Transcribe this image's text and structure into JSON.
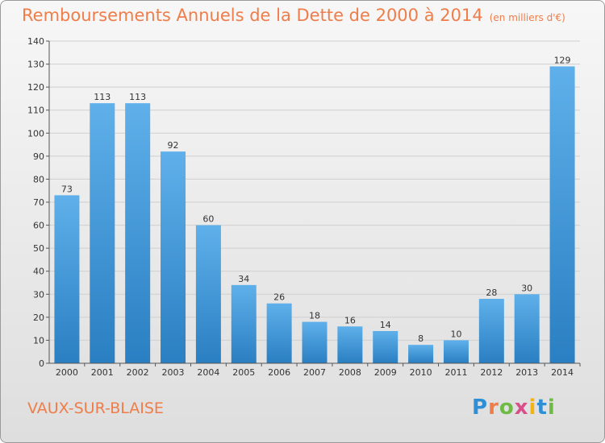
{
  "header": {
    "title": "Remboursements Annuels de la Dette de 2000 à 2014",
    "subtitle": "(en milliers d'€)"
  },
  "footer": {
    "commune": "VAUX-SUR-BLAISE",
    "logo_text": "Proxiti"
  },
  "colors": {
    "title": "#ef7d49",
    "bar_top": "#5fb0ea",
    "bar_bottom": "#2a7fc2",
    "grid": "#cfcfcf"
  },
  "chart_data": {
    "type": "bar",
    "categories": [
      "2000",
      "2001",
      "2002",
      "2003",
      "2004",
      "2005",
      "2006",
      "2007",
      "2008",
      "2009",
      "2010",
      "2011",
      "2012",
      "2013",
      "2014"
    ],
    "values": [
      73,
      113,
      113,
      92,
      60,
      34,
      26,
      18,
      16,
      14,
      8,
      10,
      28,
      30,
      129
    ],
    "ylim": [
      0,
      140
    ],
    "yticks": [
      0,
      10,
      20,
      30,
      40,
      50,
      60,
      70,
      80,
      90,
      100,
      110,
      120,
      130,
      140
    ],
    "grid": true
  }
}
